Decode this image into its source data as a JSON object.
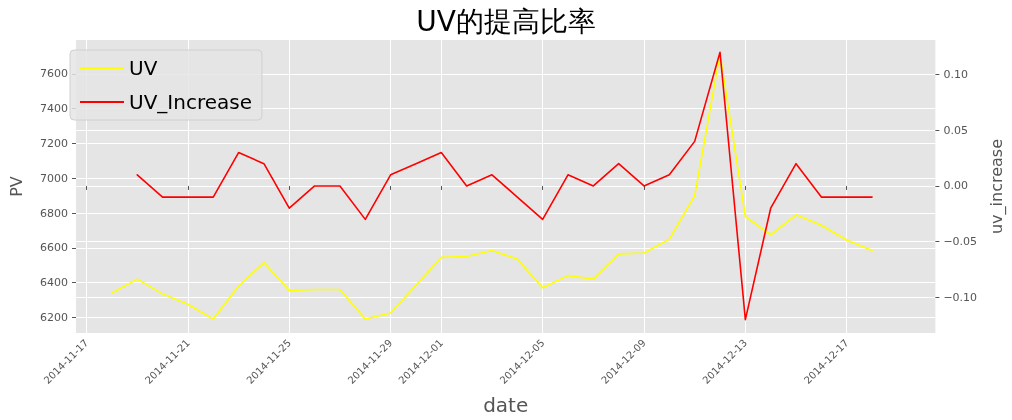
{
  "chart_data": {
    "type": "line",
    "title": "UV的提高比率",
    "xlabel": "date",
    "ylabel": "PV",
    "y2label": "uv_increase",
    "series": [
      {
        "name": "UV",
        "color": "#ffff00",
        "x": [
          "2014-11-18",
          "2014-11-19",
          "2014-11-20",
          "2014-11-21",
          "2014-11-22",
          "2014-11-23",
          "2014-11-24",
          "2014-11-25",
          "2014-11-26",
          "2014-11-27",
          "2014-11-28",
          "2014-11-29",
          "2014-11-30",
          "2014-12-01",
          "2014-12-02",
          "2014-12-03",
          "2014-12-04",
          "2014-12-05",
          "2014-12-06",
          "2014-12-07",
          "2014-12-08",
          "2014-12-09",
          "2014-12-10",
          "2014-12-11",
          "2014-12-12",
          "2014-12-13",
          "2014-12-14",
          "2014-12-15",
          "2014-12-16",
          "2014-12-17",
          "2014-12-18"
        ],
        "values": [
          6340,
          6420,
          6335,
          6275,
          6190,
          6380,
          6515,
          6355,
          6360,
          6360,
          6190,
          6225,
          6385,
          6545,
          6550,
          6585,
          6535,
          6370,
          6440,
          6420,
          6565,
          6570,
          6650,
          6900,
          7715,
          6780,
          6675,
          6790,
          6730,
          6645,
          6585
        ]
      },
      {
        "name": "UV_Increase",
        "color": "#ff0000",
        "axis": "y2",
        "x": [
          "2014-11-19",
          "2014-11-20",
          "2014-11-21",
          "2014-11-22",
          "2014-11-23",
          "2014-11-24",
          "2014-11-25",
          "2014-11-26",
          "2014-11-27",
          "2014-11-28",
          "2014-11-29",
          "2014-11-30",
          "2014-12-01",
          "2014-12-02",
          "2014-12-03",
          "2014-12-04",
          "2014-12-05",
          "2014-12-06",
          "2014-12-07",
          "2014-12-08",
          "2014-12-09",
          "2014-12-10",
          "2014-12-11",
          "2014-12-12",
          "2014-12-13",
          "2014-12-14",
          "2014-12-15",
          "2014-12-16",
          "2014-12-17",
          "2014-12-18"
        ],
        "values": [
          0.01,
          -0.01,
          -0.01,
          -0.01,
          0.03,
          0.02,
          -0.02,
          0,
          0,
          -0.03,
          0.01,
          0.02,
          0.03,
          0,
          0.01,
          -0.01,
          -0.03,
          0.01,
          0,
          0.02,
          0,
          0.01,
          0.04,
          0.12,
          -0.12,
          -0.02,
          0.02,
          -0.01,
          -0.01,
          -0.01
        ]
      }
    ],
    "xlim": [
      "2014-11-16T14:00",
      "2014-12-20T12:00"
    ],
    "xticks": [
      "2014-11-17",
      "2014-11-21",
      "2014-11-25",
      "2014-11-29",
      "2014-12-01",
      "2014-12-05",
      "2014-12-09",
      "2014-12-13",
      "2014-12-17"
    ],
    "ylim": [
      6110,
      7795
    ],
    "yticks": [
      6200,
      6400,
      6600,
      6800,
      7000,
      7200,
      7400,
      7600
    ],
    "y2lim": [
      -0.132,
      0.131
    ],
    "y2ticks": [
      {
        "value": -0.1,
        "label": "−0.10"
      },
      {
        "value": -0.05,
        "label": "−0.05"
      },
      {
        "value": 0,
        "label": "0.00"
      },
      {
        "value": 0.05,
        "label": "0.05"
      },
      {
        "value": 0.1,
        "label": "0.10"
      }
    ],
    "grid": true,
    "legend": "top left",
    "marker": "none",
    "line_style": "solid"
  }
}
